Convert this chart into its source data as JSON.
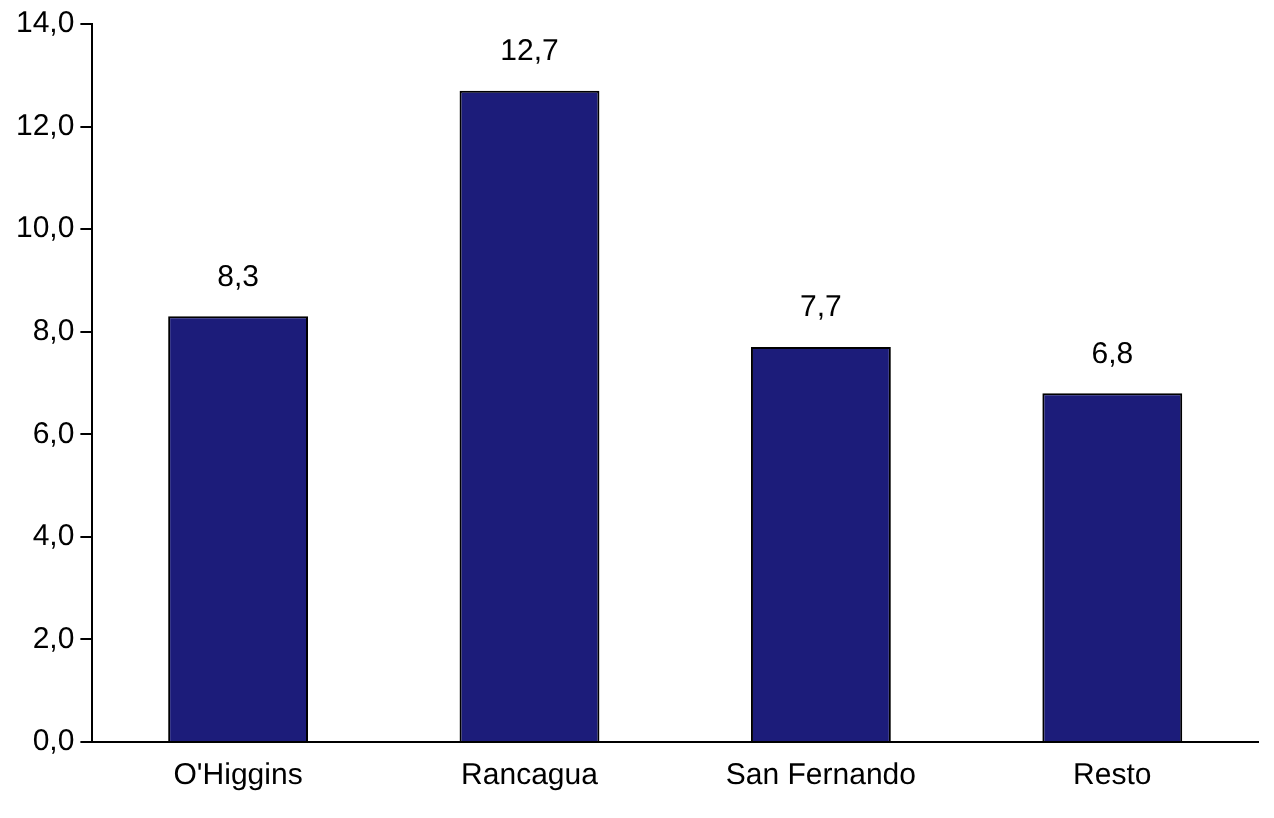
{
  "chart_data": {
    "type": "bar",
    "categories": [
      "O'Higgins",
      "Rancagua",
      "San Fernando",
      "Resto"
    ],
    "values": [
      8.3,
      12.7,
      7.7,
      6.8
    ],
    "value_labels": [
      "8,3",
      "12,7",
      "7,7",
      "6,8"
    ],
    "color": "#1c1c7a",
    "ylim": [
      0,
      14
    ],
    "yticks": [
      {
        "value": 0,
        "label": "0,0"
      },
      {
        "value": 2,
        "label": "2,0"
      },
      {
        "value": 4,
        "label": "4,0"
      },
      {
        "value": 6,
        "label": "6,0"
      },
      {
        "value": 8,
        "label": "8,0"
      },
      {
        "value": 10,
        "label": "10,0"
      },
      {
        "value": 12,
        "label": "12,0"
      },
      {
        "value": 14,
        "label": "14,0"
      }
    ],
    "grid": false,
    "legend": false
  }
}
